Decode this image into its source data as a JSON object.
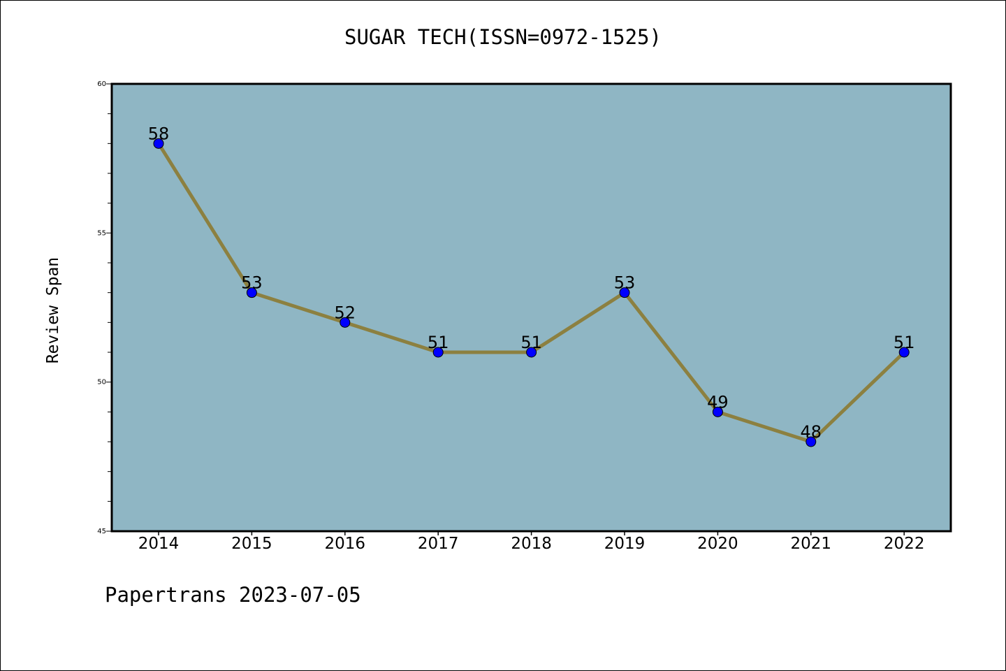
{
  "header": {
    "title": "SUGAR TECH(ISSN=0972-1525)"
  },
  "footer": {
    "text": "Papertrans 2023-07-05"
  },
  "colors": {
    "plot_background": "#8fb6c4",
    "line": "#8c8040",
    "marker": "#0000ff"
  },
  "chart_data": {
    "type": "line",
    "title": "SUGAR TECH(ISSN=0972-1525)",
    "xlabel": "",
    "ylabel": "Review Span",
    "categories": [
      "2014",
      "2015",
      "2016",
      "2017",
      "2018",
      "2019",
      "2020",
      "2021",
      "2022"
    ],
    "values": [
      58,
      53,
      52,
      51,
      51,
      53,
      49,
      48,
      51
    ],
    "ylim": [
      45,
      60
    ],
    "yticks": [
      45,
      50,
      55,
      60
    ],
    "data_labels": true,
    "grid": false,
    "legend": "none"
  }
}
